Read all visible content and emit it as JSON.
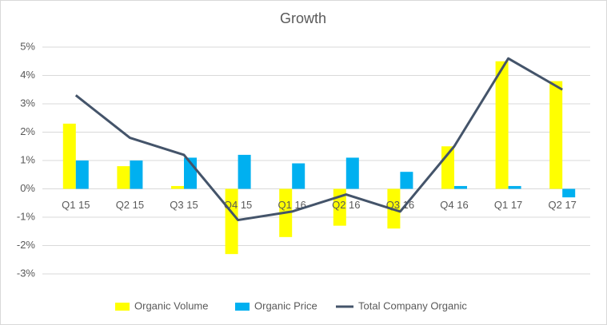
{
  "chart_data": {
    "type": "bar-line",
    "title": "Growth",
    "categories": [
      "Q1 15",
      "Q2 15",
      "Q3 15",
      "Q4 15",
      "Q1 16",
      "Q2 16",
      "Q3 16",
      "Q4 16",
      "Q1 17",
      "Q2 17"
    ],
    "series": [
      {
        "name": "Organic Volume",
        "type": "bar",
        "color": "#ffff00",
        "values": [
          2.3,
          0.8,
          0.1,
          -2.3,
          -1.7,
          -1.3,
          -1.4,
          1.5,
          4.5,
          3.8
        ]
      },
      {
        "name": "Organic Price",
        "type": "bar",
        "color": "#00b0f0",
        "values": [
          1.0,
          1.0,
          1.1,
          1.2,
          0.9,
          1.1,
          0.6,
          0.1,
          0.1,
          -0.3
        ]
      },
      {
        "name": "Total Company Organic",
        "type": "line",
        "color": "#44546a",
        "values": [
          3.3,
          1.8,
          1.2,
          -1.1,
          -0.8,
          -0.2,
          -0.8,
          1.5,
          4.6,
          3.5
        ]
      }
    ],
    "ylim": [
      -3,
      5
    ],
    "yticks": [
      {
        "value": -3,
        "label": "-3%"
      },
      {
        "value": -2,
        "label": "-2%"
      },
      {
        "value": -1,
        "label": "-1%"
      },
      {
        "value": 0,
        "label": "0%"
      },
      {
        "value": 1,
        "label": "1%"
      },
      {
        "value": 2,
        "label": "2%"
      },
      {
        "value": 3,
        "label": "3%"
      },
      {
        "value": 4,
        "label": "4%"
      },
      {
        "value": 5,
        "label": "5%"
      }
    ],
    "grid": true,
    "legend": "bottom"
  }
}
